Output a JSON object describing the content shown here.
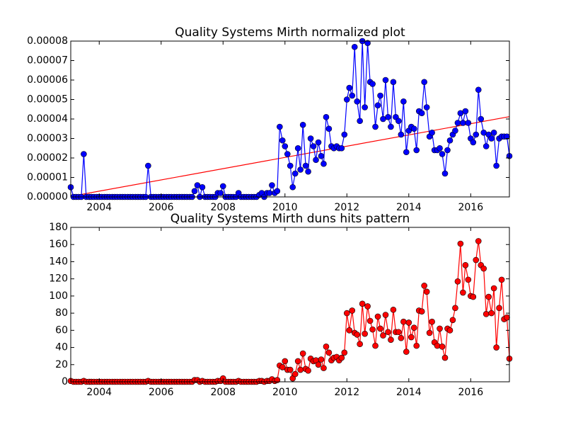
{
  "chart_data": [
    {
      "type": "line",
      "title": "Quality Systems Mirth normalized plot",
      "x": [
        2003.08,
        2003.17,
        2003.25,
        2003.33,
        2003.42,
        2003.5,
        2003.58,
        2003.67,
        2003.75,
        2003.83,
        2003.92,
        2004,
        2004.08,
        2004.17,
        2004.25,
        2004.33,
        2004.42,
        2004.5,
        2004.58,
        2004.67,
        2004.75,
        2004.83,
        2004.92,
        2005,
        2005.08,
        2005.17,
        2005.25,
        2005.33,
        2005.42,
        2005.5,
        2005.58,
        2005.67,
        2005.75,
        2005.83,
        2005.92,
        2006,
        2006.08,
        2006.17,
        2006.25,
        2006.33,
        2006.42,
        2006.5,
        2006.58,
        2006.67,
        2006.75,
        2006.83,
        2006.92,
        2007,
        2007.08,
        2007.17,
        2007.25,
        2007.33,
        2007.42,
        2007.5,
        2007.58,
        2007.67,
        2007.75,
        2007.83,
        2007.92,
        2008,
        2008.08,
        2008.17,
        2008.25,
        2008.33,
        2008.42,
        2008.5,
        2008.58,
        2008.67,
        2008.75,
        2008.83,
        2008.92,
        2009,
        2009.08,
        2009.17,
        2009.25,
        2009.33,
        2009.42,
        2009.5,
        2009.58,
        2009.67,
        2009.75,
        2009.83,
        2009.92,
        2010,
        2010.08,
        2010.17,
        2010.25,
        2010.33,
        2010.42,
        2010.5,
        2010.58,
        2010.67,
        2010.75,
        2010.83,
        2010.92,
        2011,
        2011.08,
        2011.17,
        2011.25,
        2011.33,
        2011.42,
        2011.5,
        2011.58,
        2011.67,
        2011.75,
        2011.83,
        2011.92,
        2012,
        2012.08,
        2012.17,
        2012.25,
        2012.33,
        2012.42,
        2012.5,
        2012.58,
        2012.67,
        2012.75,
        2012.83,
        2012.92,
        2013,
        2013.08,
        2013.17,
        2013.25,
        2013.33,
        2013.42,
        2013.5,
        2013.58,
        2013.67,
        2013.75,
        2013.83,
        2013.92,
        2014,
        2014.08,
        2014.17,
        2014.25,
        2014.33,
        2014.42,
        2014.5,
        2014.58,
        2014.67,
        2014.75,
        2014.83,
        2014.92,
        2015,
        2015.08,
        2015.17,
        2015.25,
        2015.33,
        2015.42,
        2015.5,
        2015.58,
        2015.67,
        2015.75,
        2015.83,
        2015.92,
        2016,
        2016.08,
        2016.17,
        2016.25,
        2016.33,
        2016.42,
        2016.5,
        2016.58,
        2016.67,
        2016.75,
        2016.83,
        2016.92,
        2017,
        2017.08,
        2017.17,
        2017.25
      ],
      "series": [
        {
          "color": "#0000ff",
          "values": [
            5e-06,
            0,
            0,
            0,
            0,
            2.2e-05,
            0,
            0,
            0,
            0,
            0,
            0,
            0,
            0,
            0,
            0,
            0,
            0,
            0,
            0,
            0,
            0,
            0,
            0,
            0,
            0,
            0,
            0,
            0,
            0,
            1.6e-05,
            0,
            0,
            0,
            0,
            0,
            0,
            0,
            0,
            0,
            0,
            0,
            0,
            0,
            0,
            0,
            0,
            0,
            3e-06,
            6e-06,
            0,
            5e-06,
            0,
            0,
            0,
            0,
            0,
            2e-06,
            2e-06,
            5.5e-06,
            0,
            0,
            0,
            0,
            0,
            2e-06,
            0,
            0,
            0,
            0,
            0,
            0,
            0,
            1e-06,
            2e-06,
            0,
            2e-06,
            2e-06,
            6e-06,
            2e-06,
            3e-06,
            3.6e-05,
            2.9e-05,
            2.6e-05,
            2.2e-05,
            1.6e-05,
            5e-06,
            1.2e-05,
            2.5e-05,
            1.4e-05,
            3.7e-05,
            1.6e-05,
            1.3e-05,
            3e-05,
            2.6e-05,
            1.9e-05,
            2.8e-05,
            2.1e-05,
            1.7e-05,
            4.1e-05,
            3.5e-05,
            2.6e-05,
            2.5e-05,
            2.6e-05,
            2.5e-05,
            2.5e-05,
            3.2e-05,
            5e-05,
            5.6e-05,
            5.2e-05,
            7.7e-05,
            4.9e-05,
            3.9e-05,
            8e-05,
            4.6e-05,
            7.9e-05,
            5.9e-05,
            5.8e-05,
            3.6e-05,
            4.7e-05,
            5.2e-05,
            4e-05,
            6e-05,
            4.1e-05,
            3.6e-05,
            5.9e-05,
            4.1e-05,
            3.9e-05,
            3.2e-05,
            4.9e-05,
            2.3e-05,
            3.4e-05,
            3.6e-05,
            3.5e-05,
            2.4e-05,
            4.4e-05,
            4.3e-05,
            5.9e-05,
            4.6e-05,
            3.1e-05,
            3.3e-05,
            2.4e-05,
            2.4e-05,
            2.5e-05,
            2.2e-05,
            1.2e-05,
            2.4e-05,
            2.9e-05,
            3.2e-05,
            3.4e-05,
            3.8e-05,
            4.3e-05,
            3.8e-05,
            4.4e-05,
            3.8e-05,
            3e-05,
            2.8e-05,
            3.2e-05,
            5.5e-05,
            4e-05,
            3.3e-05,
            2.6e-05,
            3.2e-05,
            3e-05,
            3.3e-05,
            1.6e-05,
            3e-05,
            3.1e-05,
            3.1e-05,
            3.1e-05,
            2.1e-05
          ]
        }
      ],
      "trendline": {
        "color": "#ff0000",
        "x": [
          2003.08,
          2017.25
        ],
        "values": [
          3e-07,
          4.12e-05
        ]
      },
      "xlim": [
        2003.08,
        2017.25
      ],
      "xticks": [
        2004,
        2006,
        2008,
        2010,
        2012,
        2014,
        2016
      ],
      "ylim": [
        0,
        8e-05
      ],
      "yticks": [
        {
          "value": 0,
          "label": "0.00000"
        },
        {
          "value": 1e-05,
          "label": "0.00001"
        },
        {
          "value": 2e-05,
          "label": "0.00002"
        },
        {
          "value": 3e-05,
          "label": "0.00003"
        },
        {
          "value": 4e-05,
          "label": "0.00004"
        },
        {
          "value": 5e-05,
          "label": "0.00005"
        },
        {
          "value": 6e-05,
          "label": "0.00006"
        },
        {
          "value": 7e-05,
          "label": "0.00007"
        },
        {
          "value": 8e-05,
          "label": "0.00008"
        }
      ]
    },
    {
      "type": "line",
      "title": "Quality Systems Mirth duns hits pattern",
      "x": [
        2003.08,
        2003.17,
        2003.25,
        2003.33,
        2003.42,
        2003.5,
        2003.58,
        2003.67,
        2003.75,
        2003.83,
        2003.92,
        2004,
        2004.08,
        2004.17,
        2004.25,
        2004.33,
        2004.42,
        2004.5,
        2004.58,
        2004.67,
        2004.75,
        2004.83,
        2004.92,
        2005,
        2005.08,
        2005.17,
        2005.25,
        2005.33,
        2005.42,
        2005.5,
        2005.58,
        2005.67,
        2005.75,
        2005.83,
        2005.92,
        2006,
        2006.08,
        2006.17,
        2006.25,
        2006.33,
        2006.42,
        2006.5,
        2006.58,
        2006.67,
        2006.75,
        2006.83,
        2006.92,
        2007,
        2007.08,
        2007.17,
        2007.25,
        2007.33,
        2007.42,
        2007.5,
        2007.58,
        2007.67,
        2007.75,
        2007.83,
        2007.92,
        2008,
        2008.08,
        2008.17,
        2008.25,
        2008.33,
        2008.42,
        2008.5,
        2008.58,
        2008.67,
        2008.75,
        2008.83,
        2008.92,
        2009,
        2009.08,
        2009.17,
        2009.25,
        2009.33,
        2009.42,
        2009.5,
        2009.58,
        2009.67,
        2009.75,
        2009.83,
        2009.92,
        2010,
        2010.08,
        2010.17,
        2010.25,
        2010.33,
        2010.42,
        2010.5,
        2010.58,
        2010.67,
        2010.75,
        2010.83,
        2010.92,
        2011,
        2011.08,
        2011.17,
        2011.25,
        2011.33,
        2011.42,
        2011.5,
        2011.58,
        2011.67,
        2011.75,
        2011.83,
        2011.92,
        2012,
        2012.08,
        2012.17,
        2012.25,
        2012.33,
        2012.42,
        2012.5,
        2012.58,
        2012.67,
        2012.75,
        2012.83,
        2012.92,
        2013,
        2013.08,
        2013.17,
        2013.25,
        2013.33,
        2013.42,
        2013.5,
        2013.58,
        2013.67,
        2013.75,
        2013.83,
        2013.92,
        2014,
        2014.08,
        2014.17,
        2014.25,
        2014.33,
        2014.42,
        2014.5,
        2014.58,
        2014.67,
        2014.75,
        2014.83,
        2014.92,
        2015,
        2015.08,
        2015.17,
        2015.25,
        2015.33,
        2015.42,
        2015.5,
        2015.58,
        2015.67,
        2015.75,
        2015.83,
        2015.92,
        2016,
        2016.08,
        2016.17,
        2016.25,
        2016.33,
        2016.42,
        2016.5,
        2016.58,
        2016.67,
        2016.75,
        2016.83,
        2016.92,
        2017,
        2017.08,
        2017.17,
        2017.25
      ],
      "series": [
        {
          "color": "#ff0000",
          "values": [
            1,
            0,
            0,
            0,
            0,
            1,
            0,
            0,
            0,
            0,
            0,
            0,
            0,
            0,
            0,
            0,
            0,
            0,
            0,
            0,
            0,
            0,
            0,
            0,
            0,
            0,
            0,
            0,
            0,
            0,
            1,
            0,
            0,
            0,
            0,
            0,
            0,
            0,
            0,
            0,
            0,
            0,
            0,
            0,
            0,
            0,
            0,
            0,
            2,
            2,
            0,
            1,
            0,
            0,
            0,
            0,
            0,
            1,
            1,
            4,
            0,
            0,
            0,
            0,
            0,
            1,
            0,
            0,
            0,
            0,
            0,
            0,
            0,
            1,
            1,
            0,
            1,
            1,
            3,
            1,
            2,
            19,
            17,
            24,
            14,
            14,
            4,
            9,
            24,
            14,
            33,
            15,
            13,
            27,
            24,
            25,
            20,
            26,
            16,
            41,
            34,
            25,
            28,
            29,
            25,
            28,
            34,
            80,
            60,
            83,
            57,
            55,
            44,
            91,
            56,
            88,
            71,
            61,
            42,
            76,
            62,
            54,
            78,
            58,
            49,
            84,
            58,
            58,
            51,
            70,
            35,
            69,
            52,
            63,
            42,
            83,
            82,
            112,
            105,
            57,
            70,
            46,
            42,
            62,
            41,
            28,
            62,
            60,
            72,
            86,
            117,
            161,
            104,
            136,
            119,
            100,
            99,
            142,
            164,
            136,
            132,
            79,
            99,
            80,
            109,
            40,
            86,
            119,
            73,
            75,
            27
          ]
        }
      ],
      "xlim": [
        2003.08,
        2017.25
      ],
      "xticks": [
        2004,
        2006,
        2008,
        2010,
        2012,
        2014,
        2016
      ],
      "ylim": [
        0,
        180
      ],
      "yticks": [
        0,
        20,
        40,
        60,
        80,
        100,
        120,
        140,
        160,
        180
      ]
    }
  ]
}
